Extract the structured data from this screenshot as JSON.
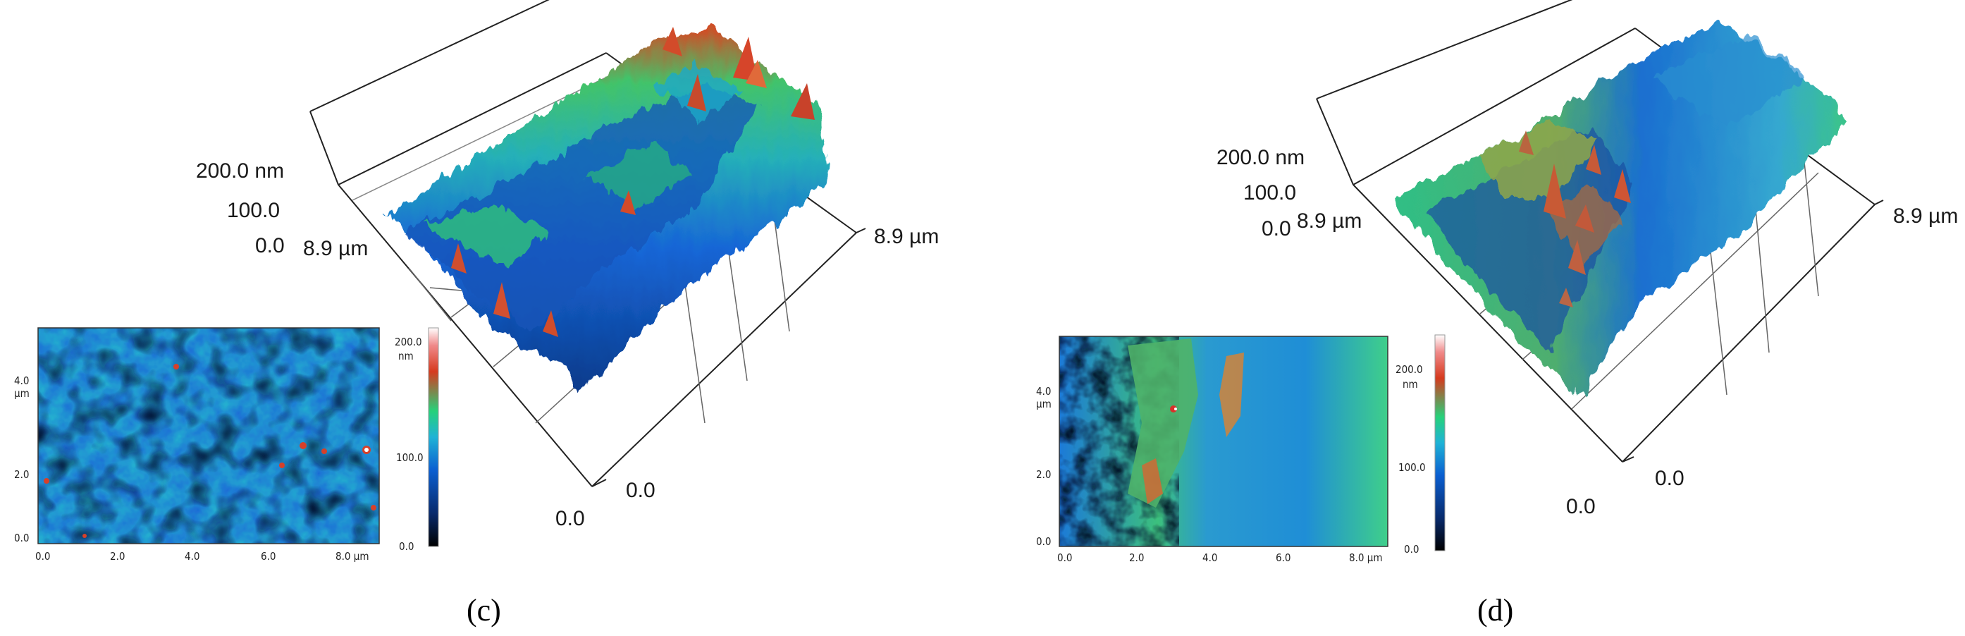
{
  "panels": [
    {
      "id": "c",
      "caption": "(c)",
      "axis3d": {
        "z_top": "200.0 nm",
        "z_mid": "100.0",
        "z_zero": "0.0",
        "left_axis": "8.9 µm",
        "right_axis": "8.9 µm",
        "origin_a": "0.0",
        "origin_b": "0.0"
      },
      "map2d": {
        "y_ticks": [
          "4.0",
          "µm",
          "2.0",
          "0.0"
        ],
        "x_ticks": [
          "0.0",
          "2.0",
          "4.0",
          "6.0",
          "8.0 µm"
        ],
        "colorbar_ticks": [
          "200.0",
          "nm",
          "100.0",
          "0.0"
        ]
      }
    },
    {
      "id": "d",
      "caption": "(d)",
      "axis3d": {
        "z_top": "200.0 nm",
        "z_mid": "100.0",
        "z_zero": "0.0",
        "left_axis": "8.9 µm",
        "right_axis": "8.9 µm",
        "origin_a": "0.0",
        "origin_b": "0.0"
      },
      "map2d": {
        "y_ticks": [
          "4.0",
          "µm",
          "2.0",
          "0.0"
        ],
        "x_ticks": [
          "0.0",
          "2.0",
          "4.0",
          "6.0",
          "8.0 µm"
        ],
        "colorbar_ticks": [
          "200.0",
          "nm",
          "100.0",
          "0.0"
        ]
      }
    }
  ],
  "colors": {
    "low": "#000000",
    "mid_low": "#0b5fd1",
    "mid": "#1fb3d6",
    "mid_high": "#27d17a",
    "high": "#d63a1e",
    "top": "#ffffff"
  }
}
